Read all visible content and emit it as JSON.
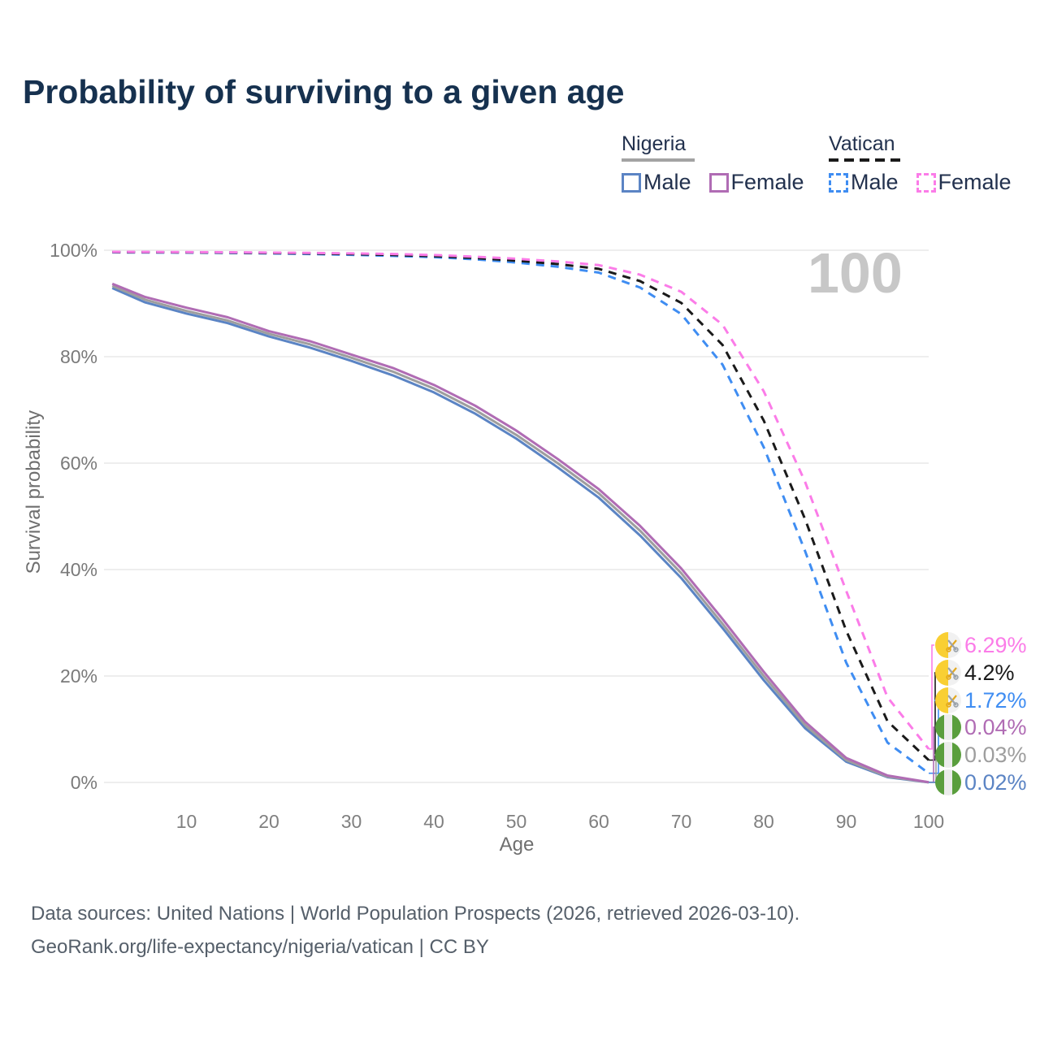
{
  "title": "Probability of surviving to a given age",
  "watermark": "100",
  "legend": {
    "groups": [
      {
        "name": "Nigeria",
        "underline_style": "solid",
        "underline_color": "#a3a3a3",
        "items": [
          {
            "label": "Male",
            "color": "#5b84c4",
            "style": "solid"
          },
          {
            "label": "Female",
            "color": "#b06cb4",
            "style": "solid"
          }
        ]
      },
      {
        "name": "Vatican",
        "underline_style": "dashed",
        "underline_color": "#1a1a1a",
        "items": [
          {
            "label": "Male",
            "color": "#3f8df2",
            "style": "dashed"
          },
          {
            "label": "Female",
            "color": "#fb7ce8",
            "style": "dashed"
          }
        ]
      }
    ]
  },
  "y_axis": {
    "title": "Survival probability",
    "ticks": [
      "0%",
      "20%",
      "40%",
      "60%",
      "80%",
      "100%"
    ],
    "min": 0,
    "max": 100
  },
  "x_axis": {
    "title": "Age",
    "ticks": [
      10,
      20,
      30,
      40,
      50,
      60,
      70,
      80,
      90,
      100
    ],
    "min": 0,
    "max": 100
  },
  "end_labels": [
    {
      "value": "6.29%",
      "color": "#fb7ce8",
      "flag": "vatican",
      "series": "Vatican Female"
    },
    {
      "value": "4.2%",
      "color": "#1a1a1a",
      "flag": "vatican",
      "series": "Vatican Both sexes"
    },
    {
      "value": "1.72%",
      "color": "#3f8df2",
      "flag": "vatican",
      "series": "Vatican Male"
    },
    {
      "value": "0.04%",
      "color": "#b06cb4",
      "flag": "nigeria",
      "series": "Nigeria Female"
    },
    {
      "value": "0.03%",
      "color": "#9e9e9e",
      "flag": "nigeria",
      "series": "Nigeria Both sexes"
    },
    {
      "value": "0.02%",
      "color": "#5b84c4",
      "flag": "nigeria",
      "series": "Nigeria Male"
    }
  ],
  "footer": {
    "line1": "Data sources: United Nations | World Population Prospects (2026, retrieved 2026-03-10).",
    "line2": "GeoRank.org/life-expectancy/nigeria/vatican | CC BY"
  },
  "chart_data": {
    "type": "line",
    "title": "Probability of surviving to a given age",
    "xlabel": "Age",
    "ylabel": "Survival probability",
    "xlim": [
      0,
      100
    ],
    "ylim": [
      0,
      100
    ],
    "grid": "horizontal",
    "x": [
      1,
      5,
      10,
      15,
      20,
      25,
      30,
      35,
      40,
      45,
      50,
      55,
      60,
      65,
      70,
      75,
      80,
      85,
      90,
      95,
      100
    ],
    "series": [
      {
        "name": "Nigeria Male",
        "color": "#5b84c4",
        "dash": false,
        "end_label": "0.02%",
        "values": [
          92.9,
          90.2,
          88.1,
          86.3,
          83.8,
          81.7,
          79.2,
          76.5,
          73.3,
          69.3,
          64.6,
          59.2,
          53.5,
          46.4,
          38.4,
          29.0,
          19.2,
          10.2,
          3.9,
          1.0,
          0.02
        ]
      },
      {
        "name": "Nigeria Both sexes",
        "color": "#9e9e9e",
        "dash": false,
        "end_label": "0.03%",
        "values": [
          93.3,
          90.7,
          88.6,
          86.8,
          84.3,
          82.3,
          79.8,
          77.2,
          74.0,
          70.0,
          65.3,
          60.0,
          54.3,
          47.3,
          39.3,
          29.8,
          20.0,
          10.8,
          4.2,
          1.1,
          0.03
        ]
      },
      {
        "name": "Nigeria Female",
        "color": "#b06cb4",
        "dash": false,
        "end_label": "0.04%",
        "values": [
          93.7,
          91.2,
          89.2,
          87.4,
          84.8,
          82.9,
          80.4,
          77.9,
          74.7,
          70.8,
          66.1,
          60.8,
          55.1,
          48.2,
          40.2,
          30.7,
          20.8,
          11.4,
          4.6,
          1.3,
          0.04
        ]
      },
      {
        "name": "Vatican Male",
        "color": "#3f8df2",
        "dash": true,
        "end_label": "1.72%",
        "values": [
          99.6,
          99.58,
          99.55,
          99.5,
          99.4,
          99.3,
          99.15,
          98.95,
          98.7,
          98.3,
          97.7,
          96.9,
          95.8,
          93.0,
          88.0,
          78.5,
          63.0,
          43.5,
          22.5,
          7.5,
          1.72
        ]
      },
      {
        "name": "Vatican Both sexes",
        "color": "#1a1a1a",
        "dash": true,
        "end_label": "4.2%",
        "values": [
          99.65,
          99.63,
          99.6,
          99.56,
          99.48,
          99.4,
          99.28,
          99.12,
          98.9,
          98.55,
          98.05,
          97.4,
          96.5,
          94.2,
          90.1,
          82.2,
          68.0,
          49.5,
          28.5,
          11.5,
          4.2
        ]
      },
      {
        "name": "Vatican Female",
        "color": "#fb7ce8",
        "dash": true,
        "end_label": "6.29%",
        "values": [
          99.7,
          99.68,
          99.65,
          99.62,
          99.55,
          99.5,
          99.4,
          99.3,
          99.1,
          98.8,
          98.4,
          97.9,
          97.2,
          95.4,
          92.2,
          86.0,
          73.5,
          56.5,
          36.0,
          16.0,
          6.29
        ]
      }
    ]
  }
}
